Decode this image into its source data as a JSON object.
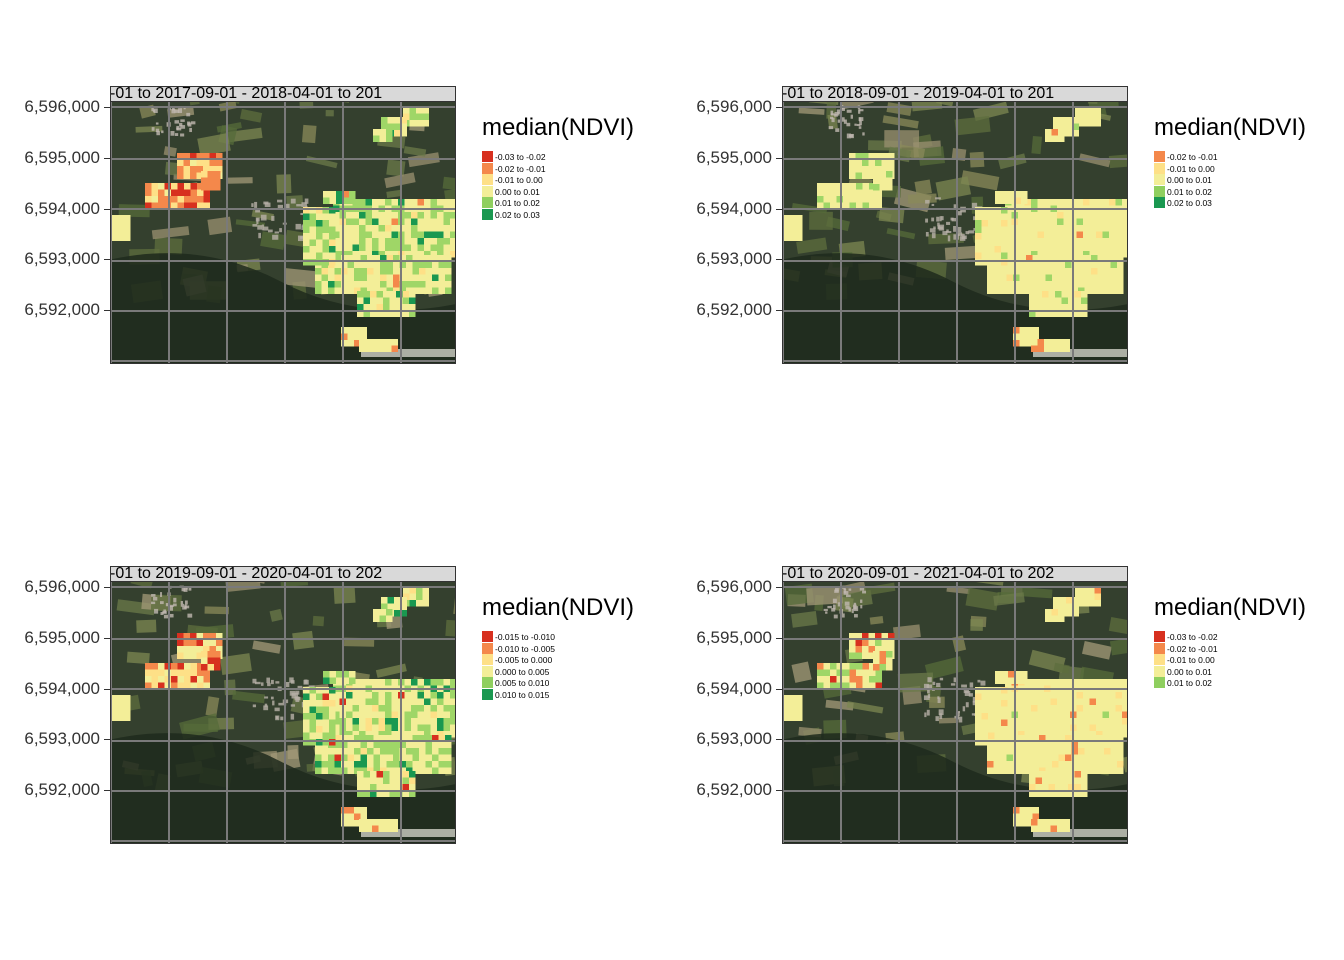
{
  "colors": {
    "c_neg3": "#d7301f",
    "c_neg2": "#f4884b",
    "c_neg1": "#fee087",
    "c_zero": "#f3ee98",
    "c_pos1": "#9fd667",
    "c_pos2": "#1a9850",
    "grid": "#7a7a7a"
  },
  "yticks": [
    "6,596,000",
    "6,595,000",
    "6,594,000",
    "6,593,000",
    "6,592,000"
  ],
  "panels": [
    {
      "strip": "-01 to 2017-09-01  -  2018-04-01 to 201",
      "legend_title": "median(NDVI)",
      "legend": [
        {
          "label": "-0.03 to -0.02",
          "color": "#d7301f"
        },
        {
          "label": "-0.02 to -0.01",
          "color": "#f4884b"
        },
        {
          "label": "-0.01 to 0.00",
          "color": "#fee087"
        },
        {
          "label": "0.00 to 0.01",
          "color": "#f3ee98"
        },
        {
          "label": "0.01 to 0.02",
          "color": "#8fcf5f"
        },
        {
          "label": "0.02 to 0.03",
          "color": "#1a9850"
        }
      ]
    },
    {
      "strip": "-01 to 2018-09-01  -  2019-04-01 to 201",
      "legend_title": "median(NDVI)",
      "legend": [
        {
          "label": "-0.02 to -0.01",
          "color": "#f4884b"
        },
        {
          "label": "-0.01 to 0.00",
          "color": "#fee087"
        },
        {
          "label": "0.00 to 0.01",
          "color": "#f3ee98"
        },
        {
          "label": "0.01 to 0.02",
          "color": "#8fcf5f"
        },
        {
          "label": "0.02 to 0.03",
          "color": "#1a9850"
        }
      ]
    },
    {
      "strip": "-01 to 2019-09-01  -  2020-04-01 to 202",
      "legend_title": "median(NDVI)",
      "legend": [
        {
          "label": "-0.015 to -0.010",
          "color": "#d7301f"
        },
        {
          "label": "-0.010 to -0.005",
          "color": "#f4884b"
        },
        {
          "label": "-0.005 to 0.000",
          "color": "#fee087"
        },
        {
          "label": "0.000 to 0.005",
          "color": "#f3ee98"
        },
        {
          "label": "0.005 to 0.010",
          "color": "#8fcf5f"
        },
        {
          "label": "0.010 to 0.015",
          "color": "#1a9850"
        }
      ]
    },
    {
      "strip": "-01 to 2020-09-01  -  2021-04-01 to 202",
      "legend_title": "median(NDVI)",
      "legend": [
        {
          "label": "-0.03 to -0.02",
          "color": "#d7301f"
        },
        {
          "label": "-0.02 to -0.01",
          "color": "#f4884b"
        },
        {
          "label": "-0.01 to 0.00",
          "color": "#fee087"
        },
        {
          "label": "0.00 to 0.01",
          "color": "#f3ee98"
        },
        {
          "label": "0.01 to 0.02",
          "color": "#8fcf5f"
        }
      ]
    }
  ]
}
